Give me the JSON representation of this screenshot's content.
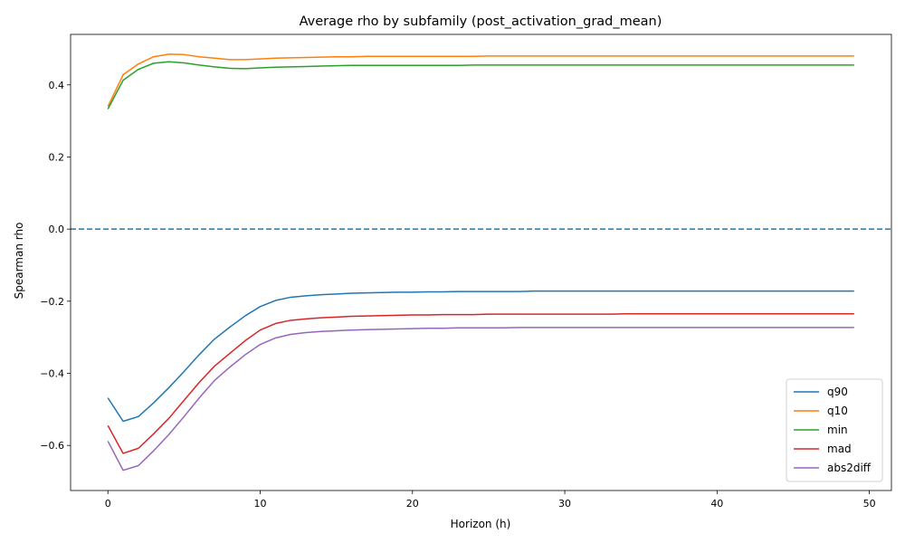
{
  "chart_data": {
    "type": "line",
    "title": "Average rho by subfamily (post_activation_grad_mean)",
    "xlabel": "Horizon (h)",
    "ylabel": "Spearman rho",
    "xlim": [
      -2.45,
      51.45
    ],
    "ylim": [
      -0.725,
      0.54
    ],
    "xticks": [
      0,
      10,
      20,
      30,
      40,
      50
    ],
    "xtick_labels": [
      "0",
      "10",
      "20",
      "30",
      "40",
      "50"
    ],
    "yticks": [
      -0.6,
      -0.4,
      -0.2,
      0.0,
      0.2,
      0.4
    ],
    "ytick_labels": [
      "−0.6",
      "−0.4",
      "−0.2",
      "0.0",
      "0.2",
      "0.4"
    ],
    "grid": false,
    "legend_position": "lower right",
    "reference_line": {
      "y": 0.0,
      "style": "dashed",
      "color": "#1f77b4"
    },
    "x": [
      0,
      1,
      2,
      3,
      4,
      5,
      6,
      7,
      8,
      9,
      10,
      11,
      12,
      13,
      14,
      15,
      16,
      17,
      18,
      19,
      20,
      21,
      22,
      23,
      24,
      25,
      26,
      27,
      28,
      29,
      30,
      31,
      32,
      33,
      34,
      35,
      36,
      37,
      38,
      39,
      40,
      41,
      42,
      43,
      44,
      45,
      46,
      47,
      48,
      49
    ],
    "series": [
      {
        "name": "q90",
        "color": "#1f77b4",
        "values": [
          -0.468,
          -0.533,
          -0.52,
          -0.482,
          -0.44,
          -0.395,
          -0.348,
          -0.305,
          -0.272,
          -0.241,
          -0.215,
          -0.198,
          -0.189,
          -0.185,
          -0.182,
          -0.18,
          -0.178,
          -0.177,
          -0.176,
          -0.175,
          -0.175,
          -0.174,
          -0.174,
          -0.173,
          -0.173,
          -0.173,
          -0.173,
          -0.173,
          -0.172,
          -0.172,
          -0.172,
          -0.172,
          -0.172,
          -0.172,
          -0.172,
          -0.172,
          -0.172,
          -0.172,
          -0.172,
          -0.172,
          -0.172,
          -0.172,
          -0.172,
          -0.172,
          -0.172,
          -0.172,
          -0.172,
          -0.172,
          -0.172,
          -0.172
        ]
      },
      {
        "name": "q10",
        "color": "#ff7f0e",
        "values": [
          0.34,
          0.428,
          0.458,
          0.478,
          0.485,
          0.484,
          0.478,
          0.474,
          0.47,
          0.47,
          0.472,
          0.474,
          0.475,
          0.476,
          0.477,
          0.478,
          0.478,
          0.479,
          0.479,
          0.479,
          0.479,
          0.479,
          0.479,
          0.479,
          0.479,
          0.48,
          0.48,
          0.48,
          0.48,
          0.48,
          0.48,
          0.48,
          0.48,
          0.48,
          0.48,
          0.48,
          0.48,
          0.48,
          0.48,
          0.48,
          0.48,
          0.48,
          0.48,
          0.48,
          0.48,
          0.48,
          0.48,
          0.48,
          0.48,
          0.48
        ]
      },
      {
        "name": "min",
        "color": "#2ca02c",
        "values": [
          0.333,
          0.413,
          0.443,
          0.46,
          0.464,
          0.461,
          0.455,
          0.45,
          0.446,
          0.445,
          0.447,
          0.449,
          0.45,
          0.451,
          0.452,
          0.453,
          0.454,
          0.454,
          0.454,
          0.454,
          0.454,
          0.454,
          0.454,
          0.454,
          0.455,
          0.455,
          0.455,
          0.455,
          0.455,
          0.455,
          0.455,
          0.455,
          0.455,
          0.455,
          0.455,
          0.455,
          0.455,
          0.455,
          0.455,
          0.455,
          0.455,
          0.455,
          0.455,
          0.455,
          0.455,
          0.455,
          0.455,
          0.455,
          0.455,
          0.455
        ]
      },
      {
        "name": "mad",
        "color": "#d62728",
        "values": [
          -0.545,
          -0.622,
          -0.608,
          -0.568,
          -0.525,
          -0.475,
          -0.425,
          -0.38,
          -0.345,
          -0.31,
          -0.28,
          -0.262,
          -0.253,
          -0.249,
          -0.246,
          -0.244,
          -0.242,
          -0.241,
          -0.24,
          -0.239,
          -0.238,
          -0.238,
          -0.237,
          -0.237,
          -0.237,
          -0.236,
          -0.236,
          -0.236,
          -0.236,
          -0.236,
          -0.236,
          -0.236,
          -0.236,
          -0.236,
          -0.235,
          -0.235,
          -0.235,
          -0.235,
          -0.235,
          -0.235,
          -0.235,
          -0.235,
          -0.235,
          -0.235,
          -0.235,
          -0.235,
          -0.235,
          -0.235,
          -0.235,
          -0.235
        ]
      },
      {
        "name": "abs2diff",
        "color": "#9467bd",
        "values": [
          -0.588,
          -0.669,
          -0.656,
          -0.615,
          -0.57,
          -0.52,
          -0.468,
          -0.42,
          -0.383,
          -0.349,
          -0.32,
          -0.302,
          -0.292,
          -0.287,
          -0.284,
          -0.282,
          -0.28,
          -0.279,
          -0.278,
          -0.277,
          -0.276,
          -0.275,
          -0.275,
          -0.274,
          -0.274,
          -0.274,
          -0.274,
          -0.273,
          -0.273,
          -0.273,
          -0.273,
          -0.273,
          -0.273,
          -0.273,
          -0.273,
          -0.273,
          -0.273,
          -0.273,
          -0.273,
          -0.273,
          -0.273,
          -0.273,
          -0.273,
          -0.273,
          -0.273,
          -0.273,
          -0.273,
          -0.273,
          -0.273,
          -0.273
        ]
      }
    ]
  }
}
